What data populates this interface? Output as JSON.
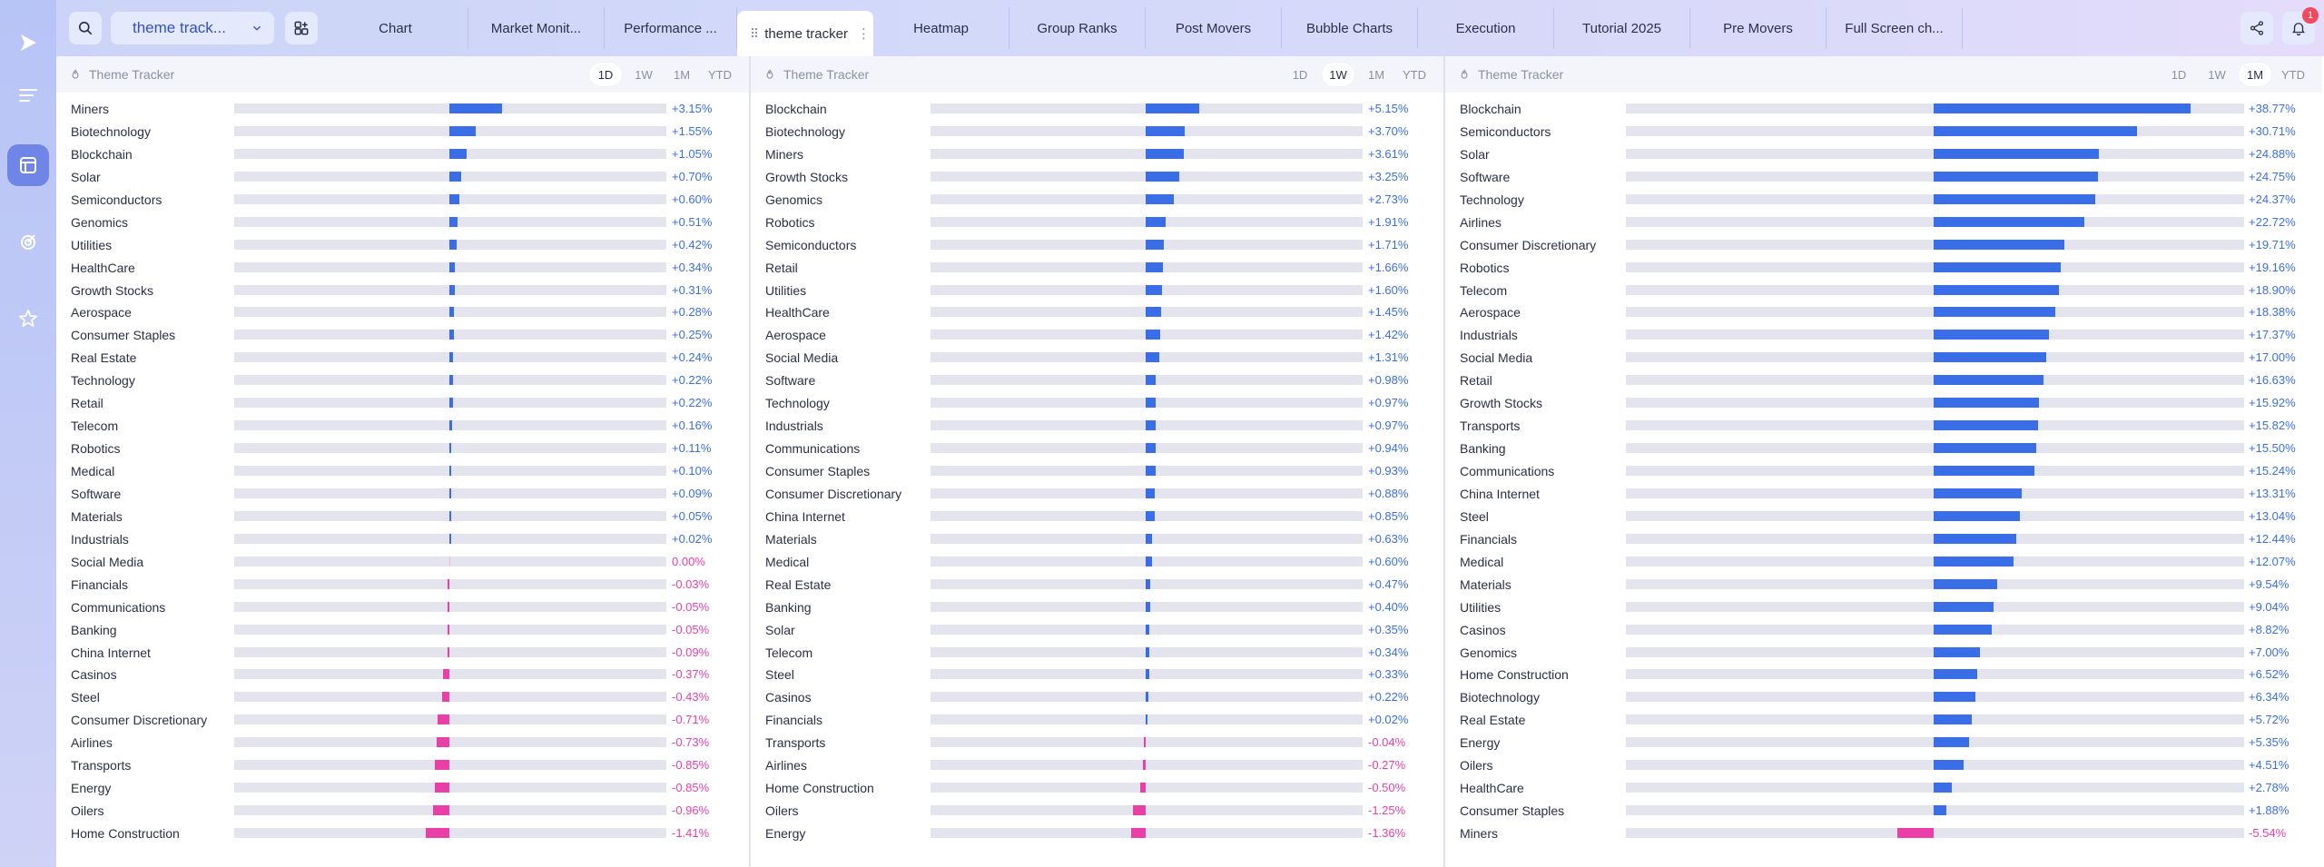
{
  "app": {
    "search_icon": "search-icon",
    "selector_value": "theme track...",
    "tabs": [
      {
        "label": "Chart",
        "w": 160
      },
      {
        "label": "Market Monit...",
        "w": 150
      },
      {
        "label": "Performance ...",
        "w": 146
      },
      {
        "label": "theme tracker",
        "w": 150,
        "active": true
      },
      {
        "label": "Heatmap",
        "w": 150
      },
      {
        "label": "Group Ranks",
        "w": 150
      },
      {
        "label": "Post Movers",
        "w": 150
      },
      {
        "label": "Bubble Charts",
        "w": 150
      },
      {
        "label": "Execution",
        "w": 150
      },
      {
        "label": "Tutorial 2025",
        "w": 150
      },
      {
        "label": "Pre Movers",
        "w": 150
      },
      {
        "label": "Full Screen ch...",
        "w": 150
      }
    ],
    "notification_count": "1",
    "colors": {
      "positive": "#3a6ee6",
      "negative": "#ea3fa7",
      "accent": "#3350c8"
    }
  },
  "panels": [
    {
      "title": "Theme Tracker",
      "periods": [
        "1D",
        "1W",
        "1M",
        "YTD"
      ],
      "active_period": "1D",
      "scale": 18.5,
      "rows": [
        {
          "name": "Miners",
          "value": 3.15,
          "label": "+3.15%"
        },
        {
          "name": "Biotechnology",
          "value": 1.55,
          "label": "+1.55%"
        },
        {
          "name": "Blockchain",
          "value": 1.05,
          "label": "+1.05%"
        },
        {
          "name": "Solar",
          "value": 0.7,
          "label": "+0.70%"
        },
        {
          "name": "Semiconductors",
          "value": 0.6,
          "label": "+0.60%"
        },
        {
          "name": "Genomics",
          "value": 0.51,
          "label": "+0.51%"
        },
        {
          "name": "Utilities",
          "value": 0.42,
          "label": "+0.42%"
        },
        {
          "name": "HealthCare",
          "value": 0.34,
          "label": "+0.34%"
        },
        {
          "name": "Growth Stocks",
          "value": 0.31,
          "label": "+0.31%"
        },
        {
          "name": "Aerospace",
          "value": 0.28,
          "label": "+0.28%"
        },
        {
          "name": "Consumer Staples",
          "value": 0.25,
          "label": "+0.25%"
        },
        {
          "name": "Real Estate",
          "value": 0.24,
          "label": "+0.24%"
        },
        {
          "name": "Technology",
          "value": 0.22,
          "label": "+0.22%"
        },
        {
          "name": "Retail",
          "value": 0.22,
          "label": "+0.22%"
        },
        {
          "name": "Telecom",
          "value": 0.16,
          "label": "+0.16%"
        },
        {
          "name": "Robotics",
          "value": 0.11,
          "label": "+0.11%"
        },
        {
          "name": "Medical",
          "value": 0.1,
          "label": "+0.10%"
        },
        {
          "name": "Software",
          "value": 0.09,
          "label": "+0.09%"
        },
        {
          "name": "Materials",
          "value": 0.05,
          "label": "+0.05%"
        },
        {
          "name": "Industrials",
          "value": 0.02,
          "label": "+0.02%"
        },
        {
          "name": "Social Media",
          "value": 0.0,
          "label": "0.00%"
        },
        {
          "name": "Financials",
          "value": -0.03,
          "label": "-0.03%"
        },
        {
          "name": "Communications",
          "value": -0.05,
          "label": "-0.05%"
        },
        {
          "name": "Banking",
          "value": -0.05,
          "label": "-0.05%"
        },
        {
          "name": "China Internet",
          "value": -0.09,
          "label": "-0.09%"
        },
        {
          "name": "Casinos",
          "value": -0.37,
          "label": "-0.37%"
        },
        {
          "name": "Steel",
          "value": -0.43,
          "label": "-0.43%"
        },
        {
          "name": "Consumer Discretionary",
          "value": -0.71,
          "label": "-0.71%"
        },
        {
          "name": "Airlines",
          "value": -0.73,
          "label": "-0.73%"
        },
        {
          "name": "Transports",
          "value": -0.85,
          "label": "-0.85%"
        },
        {
          "name": "Energy",
          "value": -0.85,
          "label": "-0.85%"
        },
        {
          "name": "Oilers",
          "value": -0.96,
          "label": "-0.96%"
        },
        {
          "name": "Home Construction",
          "value": -1.41,
          "label": "-1.41%"
        }
      ]
    },
    {
      "title": "Theme Tracker",
      "periods": [
        "1D",
        "1W",
        "1M",
        "YTD"
      ],
      "active_period": "1W",
      "scale": 11.5,
      "rows": [
        {
          "name": "Blockchain",
          "value": 5.15,
          "label": "+5.15%"
        },
        {
          "name": "Biotechnology",
          "value": 3.7,
          "label": "+3.70%"
        },
        {
          "name": "Miners",
          "value": 3.61,
          "label": "+3.61%"
        },
        {
          "name": "Growth Stocks",
          "value": 3.25,
          "label": "+3.25%"
        },
        {
          "name": "Genomics",
          "value": 2.73,
          "label": "+2.73%"
        },
        {
          "name": "Robotics",
          "value": 1.91,
          "label": "+1.91%"
        },
        {
          "name": "Semiconductors",
          "value": 1.71,
          "label": "+1.71%"
        },
        {
          "name": "Retail",
          "value": 1.66,
          "label": "+1.66%"
        },
        {
          "name": "Utilities",
          "value": 1.6,
          "label": "+1.60%"
        },
        {
          "name": "HealthCare",
          "value": 1.45,
          "label": "+1.45%"
        },
        {
          "name": "Aerospace",
          "value": 1.42,
          "label": "+1.42%"
        },
        {
          "name": "Social Media",
          "value": 1.31,
          "label": "+1.31%"
        },
        {
          "name": "Software",
          "value": 0.98,
          "label": "+0.98%"
        },
        {
          "name": "Technology",
          "value": 0.97,
          "label": "+0.97%"
        },
        {
          "name": "Industrials",
          "value": 0.97,
          "label": "+0.97%"
        },
        {
          "name": "Communications",
          "value": 0.94,
          "label": "+0.94%"
        },
        {
          "name": "Consumer Staples",
          "value": 0.93,
          "label": "+0.93%"
        },
        {
          "name": "Consumer Discretionary",
          "value": 0.88,
          "label": "+0.88%"
        },
        {
          "name": "China Internet",
          "value": 0.85,
          "label": "+0.85%"
        },
        {
          "name": "Materials",
          "value": 0.63,
          "label": "+0.63%"
        },
        {
          "name": "Medical",
          "value": 0.6,
          "label": "+0.60%"
        },
        {
          "name": "Real Estate",
          "value": 0.47,
          "label": "+0.47%"
        },
        {
          "name": "Banking",
          "value": 0.4,
          "label": "+0.40%"
        },
        {
          "name": "Solar",
          "value": 0.35,
          "label": "+0.35%"
        },
        {
          "name": "Telecom",
          "value": 0.34,
          "label": "+0.34%"
        },
        {
          "name": "Steel",
          "value": 0.33,
          "label": "+0.33%"
        },
        {
          "name": "Casinos",
          "value": 0.22,
          "label": "+0.22%"
        },
        {
          "name": "Financials",
          "value": 0.02,
          "label": "+0.02%"
        },
        {
          "name": "Transports",
          "value": -0.04,
          "label": "-0.04%"
        },
        {
          "name": "Airlines",
          "value": -0.27,
          "label": "-0.27%"
        },
        {
          "name": "Home Construction",
          "value": -0.5,
          "label": "-0.50%"
        },
        {
          "name": "Oilers",
          "value": -1.25,
          "label": "-1.25%"
        },
        {
          "name": "Energy",
          "value": -1.36,
          "label": "-1.36%"
        }
      ]
    },
    {
      "title": "Theme Tracker",
      "periods": [
        "1D",
        "1W",
        "1M",
        "YTD"
      ],
      "active_period": "1M",
      "scale": 7.3,
      "rows": [
        {
          "name": "Blockchain",
          "value": 38.77,
          "label": "+38.77%"
        },
        {
          "name": "Semiconductors",
          "value": 30.71,
          "label": "+30.71%"
        },
        {
          "name": "Solar",
          "value": 24.88,
          "label": "+24.88%"
        },
        {
          "name": "Software",
          "value": 24.75,
          "label": "+24.75%"
        },
        {
          "name": "Technology",
          "value": 24.37,
          "label": "+24.37%"
        },
        {
          "name": "Airlines",
          "value": 22.72,
          "label": "+22.72%"
        },
        {
          "name": "Consumer Discretionary",
          "value": 19.71,
          "label": "+19.71%"
        },
        {
          "name": "Robotics",
          "value": 19.16,
          "label": "+19.16%"
        },
        {
          "name": "Telecom",
          "value": 18.9,
          "label": "+18.90%"
        },
        {
          "name": "Aerospace",
          "value": 18.38,
          "label": "+18.38%"
        },
        {
          "name": "Industrials",
          "value": 17.37,
          "label": "+17.37%"
        },
        {
          "name": "Social Media",
          "value": 17.0,
          "label": "+17.00%"
        },
        {
          "name": "Retail",
          "value": 16.63,
          "label": "+16.63%"
        },
        {
          "name": "Growth Stocks",
          "value": 15.92,
          "label": "+15.92%"
        },
        {
          "name": "Transports",
          "value": 15.82,
          "label": "+15.82%"
        },
        {
          "name": "Banking",
          "value": 15.5,
          "label": "+15.50%"
        },
        {
          "name": "Communications",
          "value": 15.24,
          "label": "+15.24%"
        },
        {
          "name": "China Internet",
          "value": 13.31,
          "label": "+13.31%"
        },
        {
          "name": "Steel",
          "value": 13.04,
          "label": "+13.04%"
        },
        {
          "name": "Financials",
          "value": 12.44,
          "label": "+12.44%"
        },
        {
          "name": "Medical",
          "value": 12.07,
          "label": "+12.07%"
        },
        {
          "name": "Materials",
          "value": 9.54,
          "label": "+9.54%"
        },
        {
          "name": "Utilities",
          "value": 9.04,
          "label": "+9.04%"
        },
        {
          "name": "Casinos",
          "value": 8.82,
          "label": "+8.82%"
        },
        {
          "name": "Genomics",
          "value": 7.0,
          "label": "+7.00%"
        },
        {
          "name": "Home Construction",
          "value": 6.52,
          "label": "+6.52%"
        },
        {
          "name": "Biotechnology",
          "value": 6.34,
          "label": "+6.34%"
        },
        {
          "name": "Real Estate",
          "value": 5.72,
          "label": "+5.72%"
        },
        {
          "name": "Energy",
          "value": 5.35,
          "label": "+5.35%"
        },
        {
          "name": "Oilers",
          "value": 4.51,
          "label": "+4.51%"
        },
        {
          "name": "HealthCare",
          "value": 2.78,
          "label": "+2.78%"
        },
        {
          "name": "Consumer Staples",
          "value": 1.88,
          "label": "+1.88%"
        },
        {
          "name": "Miners",
          "value": -5.54,
          "label": "-5.54%"
        }
      ]
    }
  ]
}
